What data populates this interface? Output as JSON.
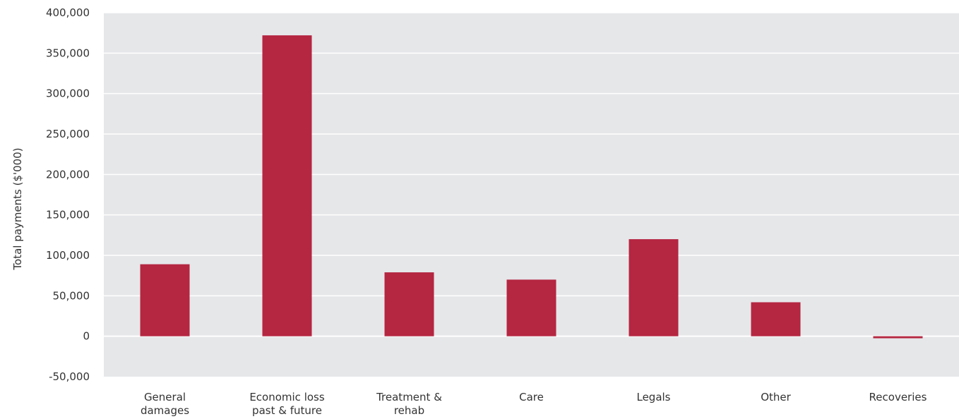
{
  "chart_data": {
    "type": "bar",
    "ylabel": "Total payments ($'000)",
    "ylim": [
      -50000,
      400000
    ],
    "y_ticks": [
      {
        "value": -50000,
        "label": "-50,000"
      },
      {
        "value": 0,
        "label": "0"
      },
      {
        "value": 50000,
        "label": "50,000"
      },
      {
        "value": 100000,
        "label": "100,000"
      },
      {
        "value": 150000,
        "label": "150,000"
      },
      {
        "value": 200000,
        "label": "200,000"
      },
      {
        "value": 250000,
        "label": "250,000"
      },
      {
        "value": 300000,
        "label": "300,000"
      },
      {
        "value": 350000,
        "label": "350,000"
      },
      {
        "value": 400000,
        "label": "400,000"
      }
    ],
    "categories": [
      [
        "General",
        "damages"
      ],
      [
        "Economic loss",
        "past & future"
      ],
      [
        "Treatment &",
        "rehab"
      ],
      [
        "Care"
      ],
      [
        "Legals"
      ],
      [
        "Other"
      ],
      [
        "Recoveries"
      ]
    ],
    "values": [
      89000,
      372000,
      79000,
      70000,
      120000,
      42000,
      -2500
    ],
    "grid": true,
    "legend": "none",
    "colors": {
      "bar": "#b52641",
      "plot_background": "#e6e7e9",
      "gridline": "#ffffff",
      "text": "#333333"
    }
  }
}
